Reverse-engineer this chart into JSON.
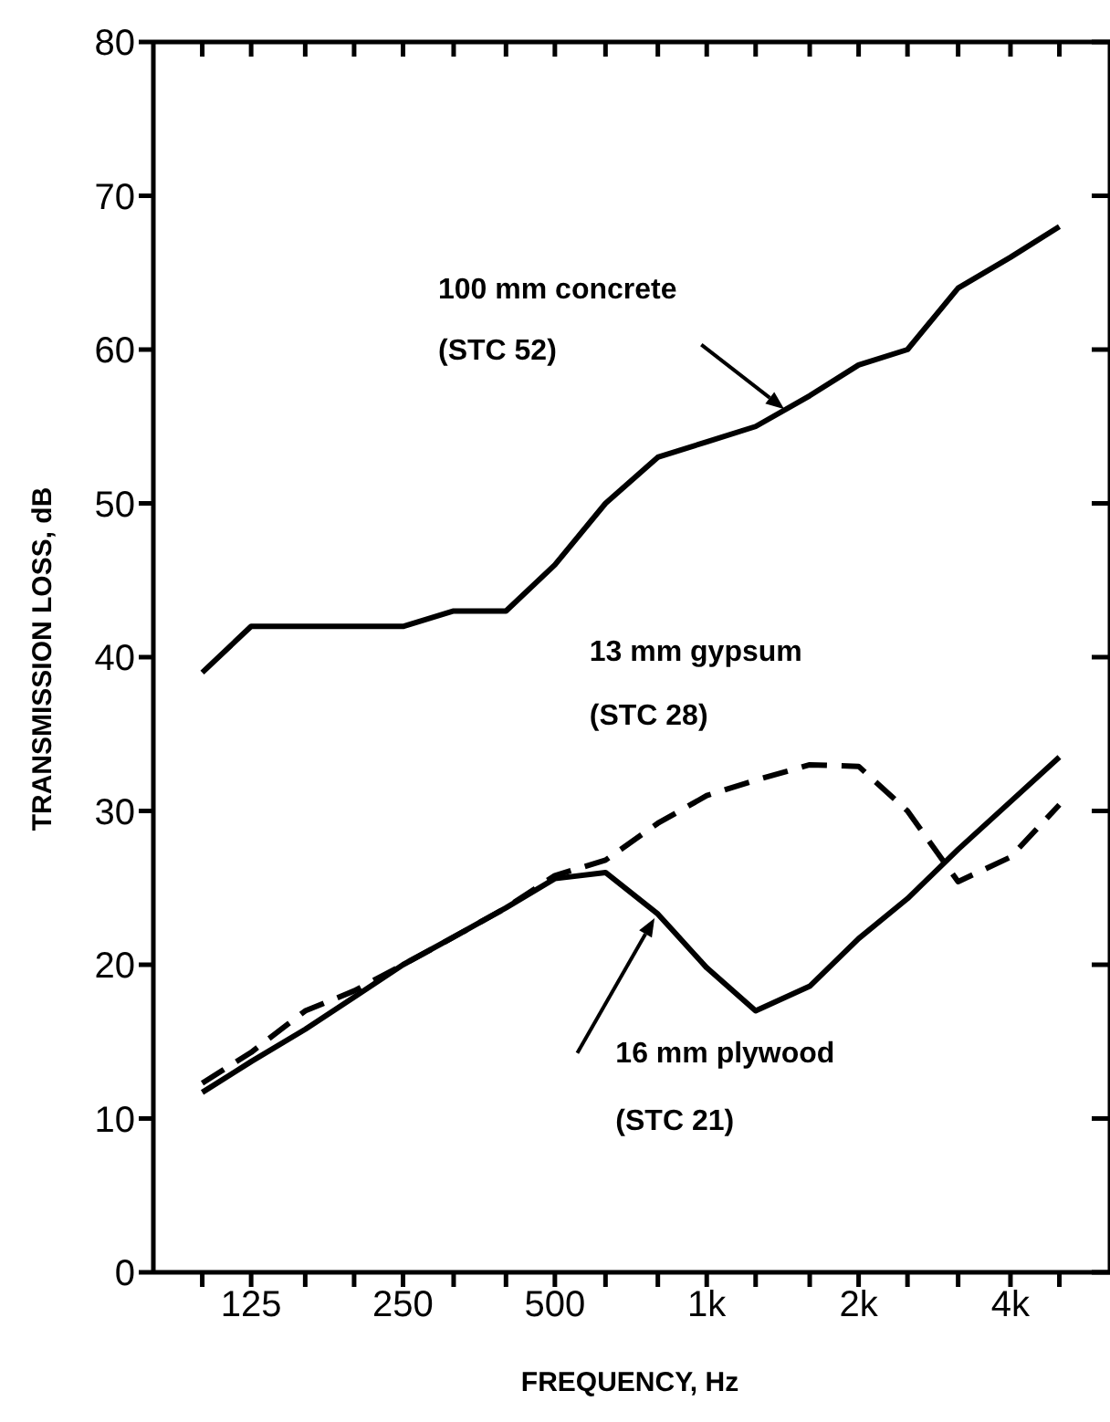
{
  "chart_data": {
    "type": "line",
    "xlabel": "FREQUENCY, Hz",
    "ylabel": "TRANSMISSION LOSS, dB",
    "x": [
      100,
      125,
      160,
      200,
      250,
      315,
      400,
      500,
      630,
      800,
      1000,
      1250,
      1600,
      2000,
      2500,
      3150,
      4000,
      5000
    ],
    "series": [
      {
        "color": "#000000",
        "line_style": "solid",
        "values": [
          39,
          42,
          42,
          42,
          42,
          43,
          43,
          46,
          50,
          53,
          54,
          55,
          57,
          59,
          60,
          64,
          66,
          68
        ]
      },
      {
        "color": "#000000",
        "line_style": "dashed",
        "values": [
          12.3,
          14.3,
          17,
          18.3,
          20,
          21.8,
          23.7,
          25.8,
          26.8,
          29.2,
          31,
          32,
          33,
          32.9,
          30,
          25.4,
          27,
          30.4
        ]
      },
      {
        "color": "#000000",
        "line_style": "solid",
        "values": [
          11.7,
          13.7,
          15.8,
          17.9,
          20,
          21.8,
          23.7,
          25.6,
          26,
          23.3,
          19.8,
          17,
          18.6,
          21.7,
          24.3,
          27.5,
          30.6,
          33.5
        ]
      }
    ],
    "xlim": [
      80,
      6300
    ],
    "xticks": [
      {
        "value": 100,
        "label": null
      },
      {
        "value": 125,
        "label": "125"
      },
      {
        "value": 160,
        "label": null
      },
      {
        "value": 200,
        "label": null
      },
      {
        "value": 250,
        "label": "250"
      },
      {
        "value": 315,
        "label": null
      },
      {
        "value": 400,
        "label": null
      },
      {
        "value": 500,
        "label": "500"
      },
      {
        "value": 630,
        "label": null
      },
      {
        "value": 800,
        "label": null
      },
      {
        "value": 1000,
        "label": "1k"
      },
      {
        "value": 1250,
        "label": null
      },
      {
        "value": 1600,
        "label": null
      },
      {
        "value": 2000,
        "label": "2k"
      },
      {
        "value": 2500,
        "label": null
      },
      {
        "value": 3150,
        "label": null
      },
      {
        "value": 4000,
        "label": "4k"
      },
      {
        "value": 5000,
        "label": null
      }
    ],
    "ylim": [
      0,
      80
    ],
    "yticks": [
      0,
      10,
      20,
      30,
      40,
      50,
      60,
      70,
      80
    ],
    "log": "x",
    "grid": false,
    "legend": false,
    "marker": "none",
    "annotations": [
      "100 mm concrete",
      "(STC 52)",
      "13 mm gypsum",
      "(STC 28)",
      "16 mm plywood",
      "(STC 21)"
    ]
  }
}
